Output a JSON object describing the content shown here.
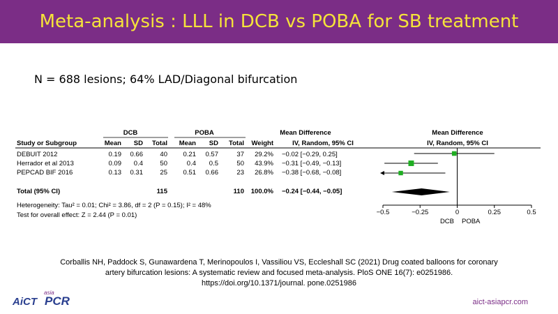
{
  "header": {
    "title": "Meta-analysis : LLL in DCB vs POBA for SB treatment"
  },
  "subtitle": "N = 688 lesions; 64% LAD/Diagonal bifurcation",
  "table": {
    "group_dcb": "DCB",
    "group_poba": "POBA",
    "col_study": "Study or Subgroup",
    "col_mean": "Mean",
    "col_sd": "SD",
    "col_total": "Total",
    "col_weight": "Weight",
    "md_header": "Mean Difference",
    "md_subheader": "IV, Random, 95% CI",
    "plot_header": "Mean Difference",
    "plot_subheader": "IV, Random, 95% CI",
    "studies": [
      {
        "name": "DEBUIT 2012",
        "dcb_mean": "0.19",
        "dcb_sd": "0.66",
        "dcb_total": "40",
        "poba_mean": "0.21",
        "poba_sd": "0.57",
        "poba_total": "37",
        "weight": "29.2%",
        "md_text": "−0.02 [−0.29, 0.25]"
      },
      {
        "name": "Herrador et al 2013",
        "dcb_mean": "0.09",
        "dcb_sd": "0.4",
        "dcb_total": "50",
        "poba_mean": "0.4",
        "poba_sd": "0.5",
        "poba_total": "50",
        "weight": "43.9%",
        "md_text": "−0.31 [−0.49, −0.13]"
      },
      {
        "name": "PEPCAD BIF 2016",
        "dcb_mean": "0.13",
        "dcb_sd": "0.31",
        "dcb_total": "25",
        "poba_mean": "0.51",
        "poba_sd": "0.66",
        "poba_total": "23",
        "weight": "26.8%",
        "md_text": "−0.38 [−0.68, −0.08]"
      }
    ],
    "total": {
      "label": "Total (95% CI)",
      "dcb_total": "115",
      "poba_total": "110",
      "weight": "100.0%",
      "md_text": "−0.24 [−0.44, −0.05]"
    },
    "heterogeneity": "Heterogeneity: Tau² = 0.01; Chi² = 3.86, df = 2 (P = 0.15); I² = 48%",
    "overall_effect": "Test for overall effect: Z = 2.44 (P = 0.01)",
    "favours_left": "DCB",
    "favours_right": "POBA"
  },
  "chart_data": {
    "type": "forest",
    "xlim": [
      -0.5,
      0.5
    ],
    "x_ticks": [
      -0.5,
      -0.25,
      0,
      0.25,
      0.5
    ],
    "x_tick_labels": [
      "−0.5",
      "−0.25",
      "0",
      "0.25",
      "0.5"
    ],
    "studies": [
      {
        "name": "DEBUIT 2012",
        "md": -0.02,
        "ci": [
          -0.29,
          0.25
        ],
        "weight": 29.2
      },
      {
        "name": "Herrador et al 2013",
        "md": -0.31,
        "ci": [
          -0.49,
          -0.13
        ],
        "weight": 43.9
      },
      {
        "name": "PEPCAD BIF 2016",
        "md": -0.38,
        "ci": [
          -0.68,
          -0.08
        ],
        "weight": 26.8
      }
    ],
    "pooled": {
      "md": -0.24,
      "ci": [
        -0.44,
        -0.05
      ]
    },
    "colors": {
      "marker": "#1fae22",
      "header": "#7b2d86",
      "title": "#f5e33a"
    }
  },
  "citation": {
    "line1": "Corballis NH, Paddock S, Gunawardena T, Merinopoulos I, Vassiliou VS, Eccleshall SC (2021) Drug coated balloons for coronary",
    "line2": "artery bifurcation lesions: A systematic review and focused meta-analysis. PloS ONE 16(7): e0251986.",
    "line3": "https://doi.org/10.1371/journal. pone.0251986"
  },
  "logo": {
    "aict": "AiCT",
    "asia": "asia",
    "pcr": "PCR"
  },
  "footer": {
    "website": "aict-asiapcr.com"
  }
}
